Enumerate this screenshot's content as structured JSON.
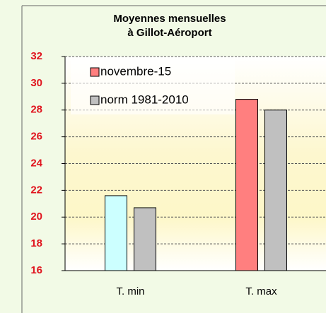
{
  "chart_data": {
    "type": "bar",
    "title": [
      "Moyennes mensuelles",
      "à Gillot-Aéroport"
    ],
    "categories": [
      "T. min",
      "T. max"
    ],
    "series": [
      {
        "name": "novembre-15",
        "colors": [
          "#ccffff",
          "#ff7f7f"
        ],
        "color": "#ff7f7f",
        "values": [
          21.6,
          28.8
        ]
      },
      {
        "name": "norm 1981-2010",
        "color": "#c0c0c0",
        "values": [
          20.7,
          28.0
        ]
      }
    ],
    "ylim": [
      16,
      32
    ],
    "yticks": [
      16,
      18,
      20,
      22,
      24,
      26,
      28,
      30,
      32
    ],
    "grid": true
  }
}
